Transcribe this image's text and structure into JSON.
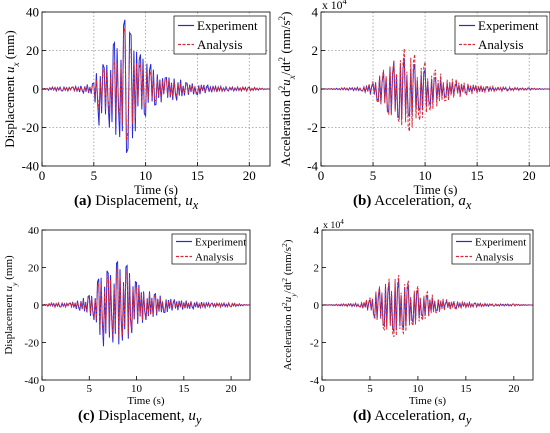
{
  "figure_captions": [
    {
      "tag": "(a)",
      "text": " Displacement, ",
      "sym": "u",
      "sub": "x"
    },
    {
      "tag": "(b)",
      "text": " Acceleration, ",
      "sym": "a",
      "sub": "x"
    },
    {
      "tag": "(c)",
      "text": " Displacement, ",
      "sym": "u",
      "sub": "y"
    },
    {
      "tag": "(d)",
      "text": " Acceleration, ",
      "sym": "a",
      "sub": "y"
    }
  ],
  "colors": {
    "experiment": "#2828d8",
    "analysis": "#d62a3a",
    "grid": "#9a9a9a"
  },
  "chart_data": [
    {
      "type": "line",
      "panel": "a",
      "xlabel": "Time (s)",
      "ylabel": "Displacement u_x (mm)",
      "xlim": [
        0,
        22
      ],
      "ylim": [
        -40,
        40
      ],
      "x_ticks": [
        0,
        5,
        10,
        15,
        20
      ],
      "y_ticks": [
        -40,
        -20,
        0,
        20,
        40
      ],
      "grid": true,
      "legend_position": "top-right",
      "series": [
        {
          "name": "Experiment",
          "style": "solid",
          "x": [
            0,
            1,
            2,
            3,
            4,
            5,
            5.5,
            6,
            6.5,
            7,
            7.5,
            8,
            8.3,
            8.6,
            9,
            9.5,
            10,
            10.5,
            11,
            12,
            13,
            14,
            15,
            16,
            18,
            20,
            22
          ],
          "y": [
            0,
            1,
            -1,
            1,
            -2,
            3,
            -19,
            11,
            -20,
            24,
            -25,
            36,
            -31,
            28,
            -22,
            18,
            -14,
            13,
            -8,
            6,
            -6,
            3,
            -3,
            2,
            -1,
            1,
            0
          ]
        },
        {
          "name": "Analysis",
          "style": "dashed",
          "x": [
            0,
            1,
            2,
            3,
            4,
            5,
            5.5,
            6,
            6.5,
            7,
            7.5,
            8,
            8.3,
            8.6,
            9,
            9.5,
            10,
            10.5,
            11,
            12,
            13,
            14,
            15,
            16,
            18,
            20,
            22
          ],
          "y": [
            0,
            1,
            -1,
            1,
            -1,
            2,
            -11,
            10,
            -13,
            14,
            -17,
            32,
            -22,
            20,
            -15,
            13,
            -10,
            9,
            -6,
            5,
            -4,
            2,
            -2,
            1,
            -1,
            1,
            0
          ]
        }
      ]
    },
    {
      "type": "line",
      "panel": "b",
      "xlabel": "Time (s)",
      "ylabel": "Acceleration d^2u_x/dt^2 (mm/s^2)",
      "y_multiplier": "x 10^4",
      "xlim": [
        0,
        22
      ],
      "ylim": [
        -4,
        4
      ],
      "x_ticks": [
        0,
        5,
        10,
        15,
        20
      ],
      "y_ticks": [
        -4,
        -2,
        0,
        2,
        4
      ],
      "grid": true,
      "legend_position": "top-right",
      "series": [
        {
          "name": "Experiment",
          "style": "solid",
          "x": [
            0,
            2,
            4,
            5,
            5.5,
            6,
            6.5,
            7,
            7.5,
            8,
            8.5,
            9,
            9.5,
            10,
            10.5,
            11,
            12,
            13,
            14,
            16,
            18,
            20,
            22
          ],
          "y": [
            0,
            0.05,
            -0.1,
            0.3,
            -0.6,
            0.9,
            -1.2,
            1.4,
            -1.5,
            1.6,
            -1.4,
            1.3,
            -1.1,
            1.0,
            -0.8,
            0.6,
            -0.4,
            0.3,
            -0.2,
            0.1,
            -0.05,
            0.05,
            0
          ]
        },
        {
          "name": "Analysis",
          "style": "dashed",
          "x": [
            0,
            2,
            4,
            5,
            5.5,
            6,
            6.5,
            7,
            7.5,
            8,
            8.5,
            9,
            9.5,
            10,
            10.5,
            11,
            12,
            13,
            14,
            16,
            18,
            20,
            22
          ],
          "y": [
            0,
            0.05,
            -0.1,
            0.4,
            -0.7,
            1.0,
            -1.3,
            1.5,
            -1.7,
            2.1,
            -2.2,
            1.8,
            -1.6,
            1.4,
            -1.1,
            1.0,
            -0.6,
            0.5,
            -0.3,
            0.15,
            -0.1,
            0.05,
            0
          ]
        }
      ]
    },
    {
      "type": "line",
      "panel": "c",
      "xlabel": "Time (s)",
      "ylabel": "Displacement u_y (mm)",
      "xlim": [
        0,
        22
      ],
      "ylim": [
        -40,
        40
      ],
      "x_ticks": [
        0,
        5,
        10,
        15,
        20
      ],
      "y_ticks": [
        -40,
        -20,
        0,
        20,
        40
      ],
      "grid": false,
      "legend_position": "top-right",
      "series": [
        {
          "name": "Experiment",
          "style": "solid",
          "x": [
            0,
            1,
            2,
            3,
            4,
            5,
            5.5,
            6,
            6.5,
            7,
            7.5,
            8,
            8.5,
            9,
            9.5,
            10,
            11,
            12,
            13,
            14,
            16,
            18,
            20,
            22
          ],
          "y": [
            0,
            1,
            -1,
            1,
            -3,
            5,
            -8,
            14,
            -22,
            17,
            -20,
            23,
            -19,
            21,
            -15,
            12,
            -8,
            6,
            -4,
            3,
            -2,
            1,
            -1,
            0
          ]
        },
        {
          "name": "Analysis",
          "style": "dashed",
          "x": [
            0,
            1,
            2,
            3,
            4,
            5,
            5.5,
            6,
            6.5,
            7,
            7.5,
            8,
            8.5,
            9,
            9.5,
            10,
            11,
            12,
            13,
            14,
            16,
            18,
            20,
            22
          ],
          "y": [
            0,
            1,
            -1,
            1,
            -2,
            4,
            -7,
            11,
            -17,
            14,
            -17,
            19,
            -16,
            18,
            -13,
            10,
            -7,
            5,
            -3,
            2,
            -1,
            1,
            -1,
            0
          ]
        }
      ]
    },
    {
      "type": "line",
      "panel": "d",
      "xlabel": "Time (s)",
      "ylabel": "Acceleration d^2u_y/dt^2 (mm/s^2)",
      "y_multiplier": "x 10^4",
      "xlim": [
        0,
        22
      ],
      "ylim": [
        -4,
        4
      ],
      "x_ticks": [
        0,
        5,
        10,
        15,
        20
      ],
      "y_ticks": [
        -4,
        -2,
        0,
        2,
        4
      ],
      "grid": false,
      "legend_position": "top-right",
      "series": [
        {
          "name": "Experiment",
          "style": "solid",
          "x": [
            0,
            2,
            4,
            5,
            5.5,
            6,
            6.5,
            7,
            7.5,
            8,
            8.5,
            9,
            9.5,
            10,
            10.5,
            11,
            12,
            13,
            14,
            16,
            18,
            20,
            22
          ],
          "y": [
            0,
            0.05,
            -0.1,
            0.3,
            -0.6,
            0.9,
            -1.1,
            1.2,
            -1.4,
            1.3,
            -1.2,
            1.1,
            -0.9,
            0.8,
            -0.6,
            0.5,
            -0.3,
            0.2,
            -0.15,
            0.1,
            -0.05,
            0.05,
            0
          ]
        },
        {
          "name": "Analysis",
          "style": "dashed",
          "x": [
            0,
            2,
            4,
            5,
            5.5,
            6,
            6.5,
            7,
            7.5,
            8,
            8.5,
            9,
            9.5,
            10,
            10.5,
            11,
            12,
            13,
            14,
            16,
            18,
            20,
            22
          ],
          "y": [
            0,
            0.05,
            -0.1,
            0.4,
            -0.7,
            1.0,
            -1.3,
            1.4,
            -1.7,
            1.6,
            -1.5,
            1.3,
            -1.1,
            1.0,
            -0.8,
            0.7,
            -0.4,
            0.3,
            -0.2,
            0.1,
            -0.05,
            0.05,
            0
          ]
        }
      ]
    }
  ]
}
